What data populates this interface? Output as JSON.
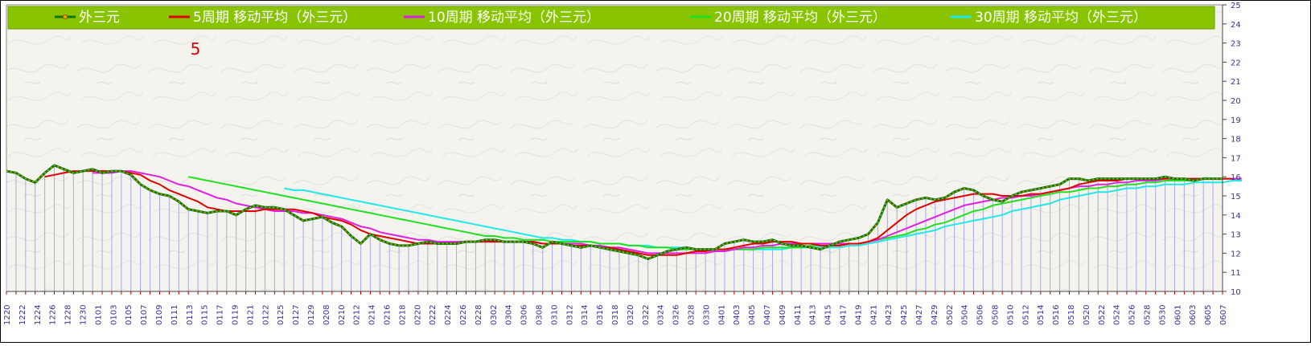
{
  "chart_data": {
    "type": "line",
    "annotation": "5",
    "y_ticks": [
      10,
      11,
      12,
      13,
      14,
      15,
      16,
      17,
      18,
      19,
      20,
      21,
      22,
      23,
      24,
      25
    ],
    "ylim": [
      10,
      25
    ],
    "legend_position": "top",
    "x_labels": [
      "1220",
      "1222",
      "1224",
      "1226",
      "1228",
      "1230",
      "0101",
      "0103",
      "0105",
      "0107",
      "0109",
      "0111",
      "0113",
      "0115",
      "0117",
      "0119",
      "0121",
      "0122",
      "0125",
      "0127",
      "0129",
      "0208",
      "0210",
      "0212",
      "0214",
      "0216",
      "0218",
      "0220",
      "0222",
      "0224",
      "0226",
      "0228",
      "0302",
      "0304",
      "0306",
      "0308",
      "0310",
      "0312",
      "0314",
      "0316",
      "0318",
      "0320",
      "0322",
      "0324",
      "0326",
      "0328",
      "0330",
      "0401",
      "0403",
      "0405",
      "0407",
      "0409",
      "0411",
      "0413",
      "0415",
      "0417",
      "0419",
      "0421",
      "0423",
      "0425",
      "0427",
      "0429",
      "0502",
      "0504",
      "0506",
      "0508",
      "0510",
      "0512",
      "0514",
      "0516",
      "0518",
      "0520",
      "0522",
      "0524",
      "0526",
      "0528",
      "0530",
      "0601",
      "0603",
      "0605",
      "0607"
    ],
    "series": [
      {
        "name": "外三元",
        "color": "#0a7a0a",
        "values": [
          16.3,
          16.2,
          15.9,
          15.7,
          16.2,
          16.6,
          16.4,
          16.2,
          16.3,
          16.4,
          16.2,
          16.3,
          16.3,
          16.1,
          15.6,
          15.3,
          15.1,
          15.0,
          14.7,
          14.3,
          14.2,
          14.1,
          14.2,
          14.2,
          14.0,
          14.3,
          14.5,
          14.4,
          14.4,
          14.3,
          14.0,
          13.7,
          13.8,
          13.9,
          13.6,
          13.4,
          12.9,
          12.5,
          13.0,
          12.7,
          12.5,
          12.4,
          12.4,
          12.5,
          12.6,
          12.5,
          12.5,
          12.5,
          12.6,
          12.6,
          12.7,
          12.7,
          12.6,
          12.6,
          12.6,
          12.5,
          12.3,
          12.6,
          12.5,
          12.4,
          12.3,
          12.4,
          12.3,
          12.2,
          12.1,
          12.0,
          11.9,
          11.7,
          11.9,
          12.1,
          12.2,
          12.3,
          12.2,
          12.2,
          12.2,
          12.5,
          12.6,
          12.7,
          12.6,
          12.6,
          12.7,
          12.5,
          12.4,
          12.4,
          12.3,
          12.2,
          12.4,
          12.6,
          12.7,
          12.8,
          13.0,
          13.6,
          14.8,
          14.4,
          14.6,
          14.8,
          14.9,
          14.8,
          14.9,
          15.2,
          15.4,
          15.3,
          15.0,
          14.8,
          14.7,
          15.0,
          15.2,
          15.3,
          15.4,
          15.5,
          15.6,
          15.9,
          15.9,
          15.8,
          15.9,
          15.9,
          15.9,
          15.9,
          15.9,
          15.9,
          15.9,
          16.0,
          15.9,
          15.9,
          15.8,
          15.9,
          15.9,
          15.9
        ]
      },
      {
        "name": "5周期 移动平均（外三元）",
        "color": "#e00000",
        "values": [
          null,
          null,
          null,
          null,
          16.0,
          16.1,
          16.2,
          16.3,
          16.3,
          16.3,
          16.3,
          16.3,
          16.3,
          16.2,
          16.1,
          15.8,
          15.6,
          15.3,
          15.1,
          14.9,
          14.7,
          14.4,
          14.3,
          14.2,
          14.2,
          14.2,
          14.2,
          14.3,
          14.3,
          14.3,
          14.3,
          14.2,
          14.1,
          13.9,
          13.8,
          13.7,
          13.5,
          13.2,
          13.0,
          12.9,
          12.8,
          12.7,
          12.6,
          12.5,
          12.5,
          12.5,
          12.5,
          12.5,
          12.6,
          12.6,
          12.6,
          12.6,
          12.6,
          12.6,
          12.6,
          12.6,
          12.5,
          12.5,
          12.5,
          12.4,
          12.4,
          12.4,
          12.3,
          12.3,
          12.2,
          12.1,
          12.0,
          11.9,
          11.9,
          11.9,
          11.9,
          12.0,
          12.1,
          12.1,
          12.2,
          12.2,
          12.3,
          12.4,
          12.5,
          12.5,
          12.6,
          12.6,
          12.6,
          12.5,
          12.5,
          12.4,
          12.4,
          12.4,
          12.5,
          12.5,
          12.6,
          12.8,
          13.2,
          13.6,
          14.0,
          14.3,
          14.5,
          14.7,
          14.8,
          14.9,
          15.0,
          15.1,
          15.1,
          15.1,
          15.0,
          15.0,
          15.0,
          15.1,
          15.1,
          15.2,
          15.3,
          15.4,
          15.6,
          15.7,
          15.8,
          15.8,
          15.8,
          15.9,
          15.9,
          15.9,
          15.9,
          15.9,
          15.9,
          15.9,
          15.9,
          15.9,
          15.9,
          15.9,
          15.9
        ]
      },
      {
        "name": "10周期 移动平均（外三元）",
        "color": "#e020e0",
        "values": [
          null,
          null,
          null,
          null,
          null,
          null,
          null,
          null,
          null,
          16.2,
          16.2,
          16.2,
          16.3,
          16.3,
          16.2,
          16.1,
          16.0,
          15.8,
          15.6,
          15.5,
          15.3,
          15.1,
          14.9,
          14.8,
          14.6,
          14.5,
          14.4,
          14.3,
          14.2,
          14.2,
          14.2,
          14.1,
          14.1,
          14.0,
          13.9,
          13.8,
          13.6,
          13.4,
          13.3,
          13.1,
          13.0,
          12.9,
          12.8,
          12.7,
          12.7,
          12.6,
          12.6,
          12.6,
          12.6,
          12.6,
          12.6,
          12.6,
          12.6,
          12.6,
          12.6,
          12.6,
          12.5,
          12.5,
          12.5,
          12.5,
          12.5,
          12.4,
          12.4,
          12.3,
          12.3,
          12.2,
          12.1,
          12.0,
          12.0,
          12.0,
          12.0,
          12.0,
          12.0,
          12.0,
          12.1,
          12.1,
          12.2,
          12.3,
          12.3,
          12.4,
          12.4,
          12.5,
          12.5,
          12.5,
          12.5,
          12.5,
          12.5,
          12.5,
          12.5,
          12.5,
          12.6,
          12.7,
          12.9,
          13.1,
          13.3,
          13.5,
          13.7,
          13.9,
          14.1,
          14.3,
          14.5,
          14.6,
          14.7,
          14.8,
          14.9,
          14.9,
          15.0,
          15.0,
          15.1,
          15.2,
          15.3,
          15.4,
          15.5,
          15.5,
          15.6,
          15.6,
          15.7,
          15.7,
          15.8,
          15.8,
          15.8,
          15.9,
          15.9,
          15.9,
          15.9,
          15.9,
          15.9,
          15.9,
          15.9,
          15.9
        ]
      },
      {
        "name": "20周期 移动平均（外三元）",
        "color": "#20e020",
        "values": [
          null,
          null,
          null,
          null,
          null,
          null,
          null,
          null,
          null,
          null,
          null,
          null,
          null,
          null,
          null,
          null,
          null,
          null,
          null,
          16.0,
          15.9,
          15.8,
          15.7,
          15.6,
          15.5,
          15.4,
          15.3,
          15.2,
          15.1,
          15.0,
          14.9,
          14.8,
          14.7,
          14.6,
          14.5,
          14.4,
          14.3,
          14.2,
          14.1,
          14.0,
          13.9,
          13.8,
          13.7,
          13.6,
          13.5,
          13.4,
          13.3,
          13.2,
          13.1,
          13.0,
          12.9,
          12.9,
          12.8,
          12.8,
          12.7,
          12.7,
          12.7,
          12.6,
          12.6,
          12.6,
          12.6,
          12.6,
          12.5,
          12.5,
          12.5,
          12.4,
          12.4,
          12.3,
          12.3,
          12.3,
          12.2,
          12.2,
          12.2,
          12.2,
          12.2,
          12.2,
          12.2,
          12.2,
          12.2,
          12.3,
          12.3,
          12.3,
          12.3,
          12.3,
          12.4,
          12.4,
          12.4,
          12.4,
          12.5,
          12.5,
          12.6,
          12.7,
          12.8,
          12.9,
          13.0,
          13.2,
          13.3,
          13.5,
          13.6,
          13.8,
          14.0,
          14.2,
          14.3,
          14.5,
          14.6,
          14.7,
          14.8,
          14.9,
          15.0,
          15.1,
          15.2,
          15.2,
          15.3,
          15.4,
          15.4,
          15.5,
          15.5,
          15.6,
          15.6,
          15.7,
          15.7,
          15.8,
          15.8,
          15.8,
          15.8,
          15.9,
          15.9,
          15.9,
          15.9,
          15.9
        ]
      },
      {
        "name": "30周期 移动平均（外三元）",
        "color": "#20e8e8",
        "values": [
          null,
          null,
          null,
          null,
          null,
          null,
          null,
          null,
          null,
          null,
          null,
          null,
          null,
          null,
          null,
          null,
          null,
          null,
          null,
          null,
          null,
          null,
          null,
          null,
          null,
          null,
          null,
          null,
          null,
          15.4,
          15.3,
          15.3,
          15.2,
          15.1,
          15.0,
          14.9,
          14.8,
          14.7,
          14.6,
          14.5,
          14.4,
          14.3,
          14.2,
          14.1,
          14.0,
          13.9,
          13.8,
          13.7,
          13.6,
          13.5,
          13.4,
          13.3,
          13.2,
          13.1,
          13.0,
          12.9,
          12.8,
          12.8,
          12.7,
          12.7,
          12.6,
          12.6,
          12.5,
          12.5,
          12.5,
          12.4,
          12.4,
          12.4,
          12.3,
          12.3,
          12.3,
          12.3,
          12.2,
          12.2,
          12.2,
          12.2,
          12.2,
          12.2,
          12.2,
          12.2,
          12.2,
          12.2,
          12.3,
          12.3,
          12.3,
          12.3,
          12.3,
          12.3,
          12.4,
          12.4,
          12.5,
          12.6,
          12.7,
          12.8,
          12.9,
          13.0,
          13.1,
          13.2,
          13.4,
          13.5,
          13.6,
          13.7,
          13.8,
          13.9,
          14.0,
          14.2,
          14.3,
          14.4,
          14.5,
          14.6,
          14.8,
          14.9,
          15.0,
          15.1,
          15.2,
          15.2,
          15.3,
          15.4,
          15.4,
          15.5,
          15.5,
          15.6,
          15.6,
          15.6,
          15.7,
          15.7,
          15.7,
          15.7,
          15.8,
          15.8
        ]
      }
    ]
  }
}
